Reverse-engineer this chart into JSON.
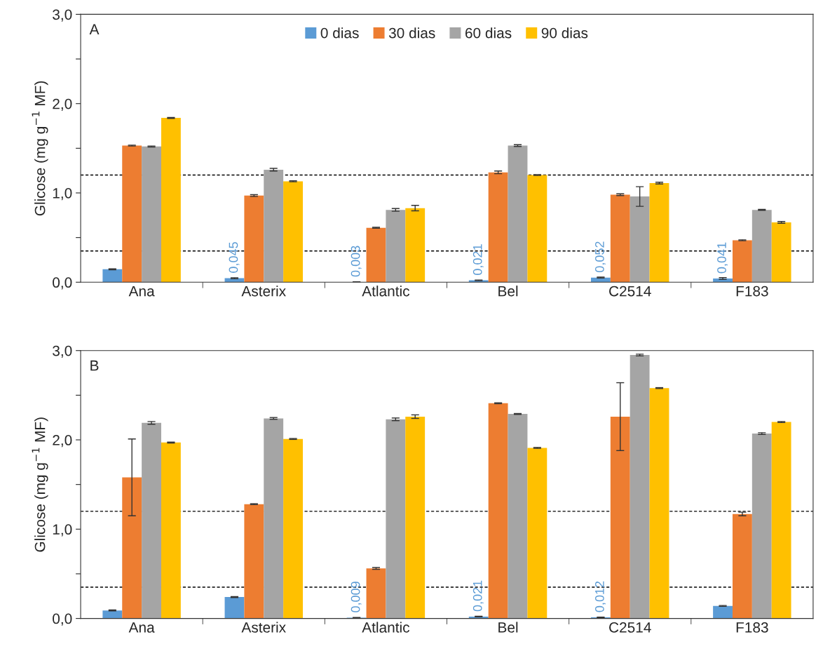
{
  "chart_data": [
    {
      "type": "bar",
      "ylabel": "Glicose (mg g$^{−1}$ MF)",
      "annotations": [
        "A"
      ],
      "legend": "top",
      "grid": false,
      "categories": [
        "Ana",
        "Asterix",
        "Atlantic",
        "Bel",
        "C2514",
        "F183"
      ],
      "ylim": [
        0,
        3
      ],
      "yticks": [
        {
          "value": 0,
          "label": "0,0"
        },
        {
          "value": 0.5,
          "label": null
        },
        {
          "value": 1,
          "label": "1,0"
        },
        {
          "value": 1.5,
          "label": null
        },
        {
          "value": 2,
          "label": "2,0"
        },
        {
          "value": 2.5,
          "label": null
        },
        {
          "value": 3,
          "label": "3,0"
        }
      ],
      "ref_lines": [
        {
          "axis": "y",
          "value": 1.2,
          "line_style": "dashed",
          "color": "#000000"
        },
        {
          "axis": "y",
          "value": 0.35,
          "line_style": "dashed",
          "color": "#000000"
        }
      ],
      "series": [
        {
          "name": "0 dias",
          "color": "#5b9bd5",
          "values": [
            0.145,
            0.045,
            0.003,
            0.021,
            0.052,
            0.041
          ],
          "errors": [
            0.005,
            0.005,
            0.002,
            0.004,
            0.005,
            0.01
          ],
          "value_labels": [
            null,
            "0,045",
            "0,003",
            "0,021",
            "0,052",
            "0,041"
          ]
        },
        {
          "name": "30 dias",
          "color": "#ed7d31",
          "values": [
            1.53,
            0.97,
            0.61,
            1.23,
            0.98,
            0.47
          ],
          "errors": [
            0.005,
            0.01,
            0.005,
            0.015,
            0.01,
            0.005
          ]
        },
        {
          "name": "60 dias",
          "color": "#a5a5a5",
          "values": [
            1.52,
            1.26,
            0.81,
            1.53,
            0.96,
            0.81
          ],
          "errors": [
            0.005,
            0.015,
            0.015,
            0.01,
            0.11,
            0.005
          ]
        },
        {
          "name": "90 dias",
          "color": "#ffc000",
          "values": [
            1.84,
            1.13,
            0.83,
            1.2,
            1.11,
            0.67
          ],
          "errors": [
            0.005,
            0.005,
            0.03,
            0.005,
            0.01,
            0.01
          ]
        }
      ]
    },
    {
      "type": "bar",
      "ylabel": "Glicose (mg g$^{−1}$ MF)",
      "annotations": [
        "B"
      ],
      "grid": false,
      "categories": [
        "Ana",
        "Asterix",
        "Atlantic",
        "Bel",
        "C2514",
        "F183"
      ],
      "ylim": [
        0,
        3
      ],
      "yticks": [
        {
          "value": 0,
          "label": "0,0"
        },
        {
          "value": 0.5,
          "label": null
        },
        {
          "value": 1,
          "label": "1,0"
        },
        {
          "value": 1.5,
          "label": null
        },
        {
          "value": 2,
          "label": "2,0"
        },
        {
          "value": 2.5,
          "label": null
        },
        {
          "value": 3,
          "label": "3,0"
        }
      ],
      "ref_lines": [
        {
          "axis": "y",
          "value": 1.2,
          "line_style": "dashed",
          "color": "#000000"
        },
        {
          "axis": "y",
          "value": 0.35,
          "line_style": "dashed",
          "color": "#000000"
        }
      ],
      "series": [
        {
          "color": "#5b9bd5",
          "values": [
            0.09,
            0.24,
            0.009,
            0.021,
            0.012,
            0.14
          ],
          "errors": [
            0.005,
            0.005,
            0.002,
            0.003,
            0.002,
            0.005
          ],
          "value_labels": [
            null,
            null,
            "0,009",
            "0,021",
            "0,012",
            null
          ]
        },
        {
          "color": "#ed7d31",
          "values": [
            1.58,
            1.28,
            0.56,
            2.41,
            2.26,
            1.17
          ],
          "errors": [
            0.43,
            0.005,
            0.01,
            0.005,
            0.38,
            0.02
          ]
        },
        {
          "color": "#a5a5a5",
          "values": [
            2.19,
            2.24,
            2.23,
            2.29,
            2.95,
            2.07
          ],
          "errors": [
            0.015,
            0.01,
            0.015,
            0.005,
            0.01,
            0.01
          ]
        },
        {
          "color": "#ffc000",
          "values": [
            1.97,
            2.01,
            2.26,
            1.91,
            2.58,
            2.2
          ],
          "errors": [
            0.005,
            0.005,
            0.02,
            0.005,
            0.005,
            0.005
          ]
        }
      ]
    }
  ]
}
